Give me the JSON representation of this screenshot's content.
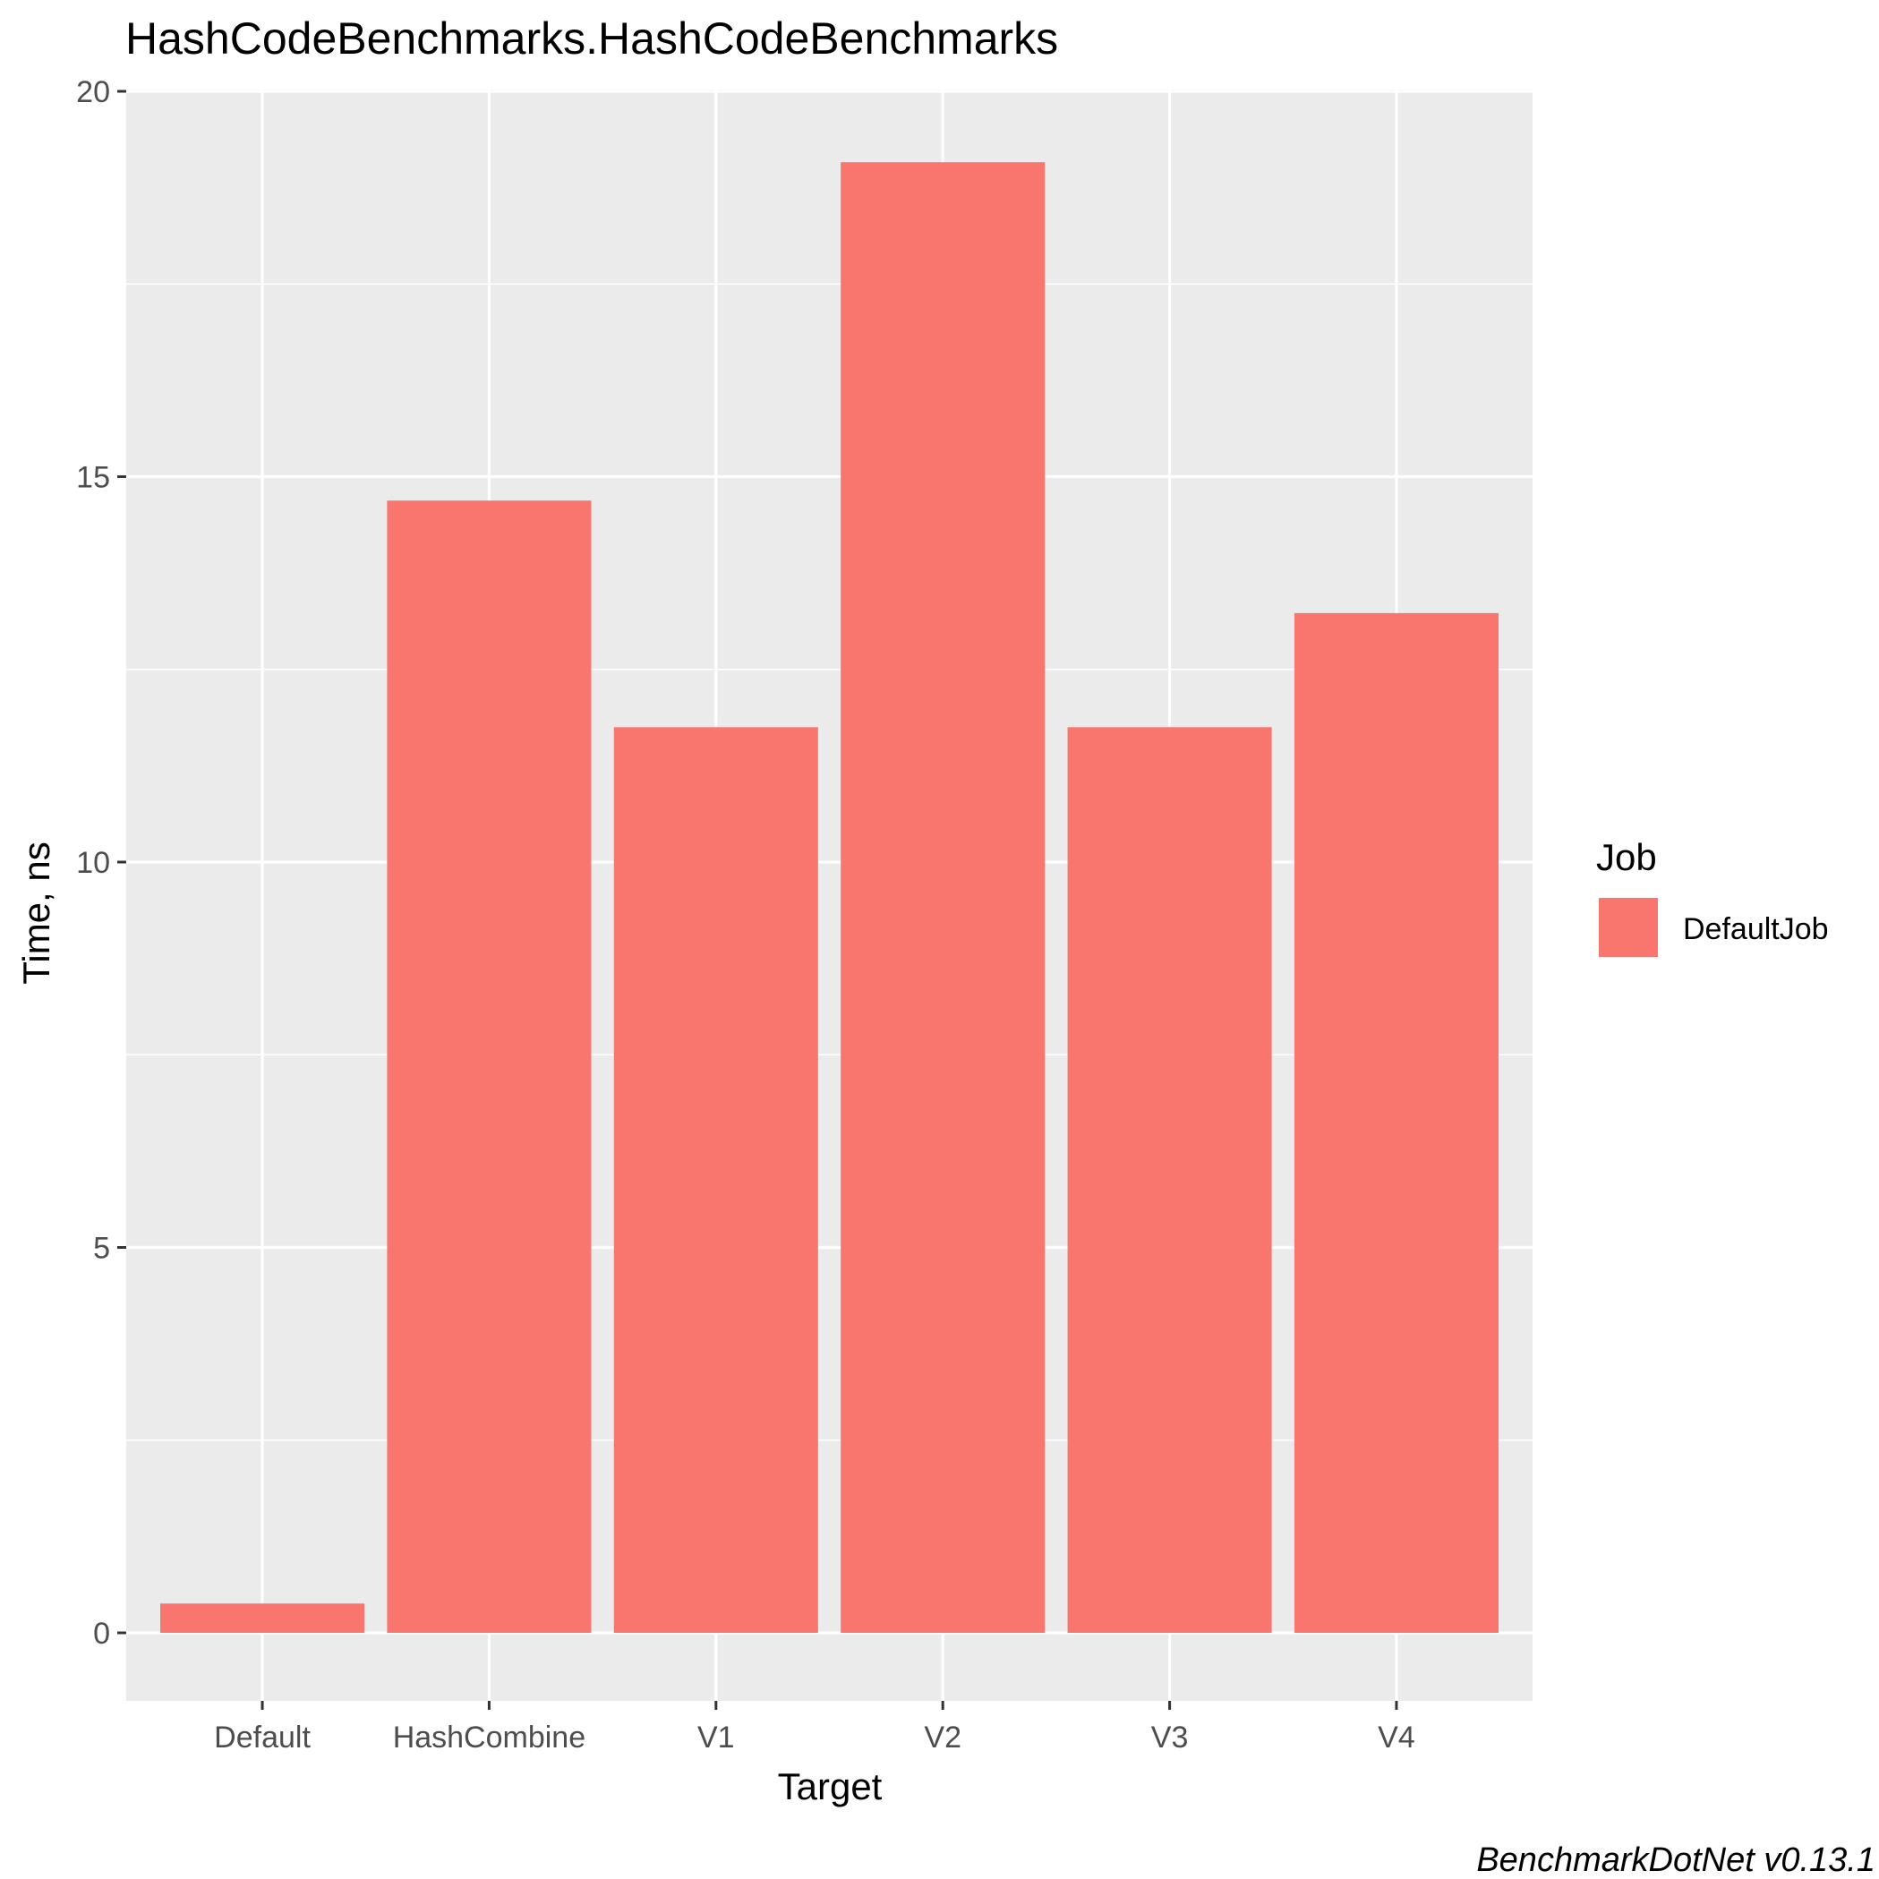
{
  "chart_data": {
    "type": "bar",
    "title": "HashCodeBenchmarks.HashCodeBenchmarks",
    "xlabel": "Target",
    "ylabel": "Time, ns",
    "categories": [
      "Default",
      "HashCombine",
      "V1",
      "V2",
      "V3",
      "V4"
    ],
    "series": [
      {
        "name": "DefaultJob",
        "values": [
          0.38,
          14.69,
          11.75,
          19.08,
          11.75,
          13.23
        ],
        "color": "#F8766D"
      }
    ],
    "ylim": [
      -0.9,
      20
    ],
    "yticks": [
      0,
      5,
      10,
      15,
      20
    ],
    "ytick_labels": [
      "0",
      "5",
      "10",
      "15",
      "20"
    ],
    "grid": true,
    "legend": {
      "title": "Job",
      "position": "right"
    },
    "caption": "BenchmarkDotNet v0.13.1",
    "colors": {
      "panel_background": "#EBEBEB",
      "grid": "#FFFFFF",
      "tick_text": "#4D4D4D"
    }
  }
}
